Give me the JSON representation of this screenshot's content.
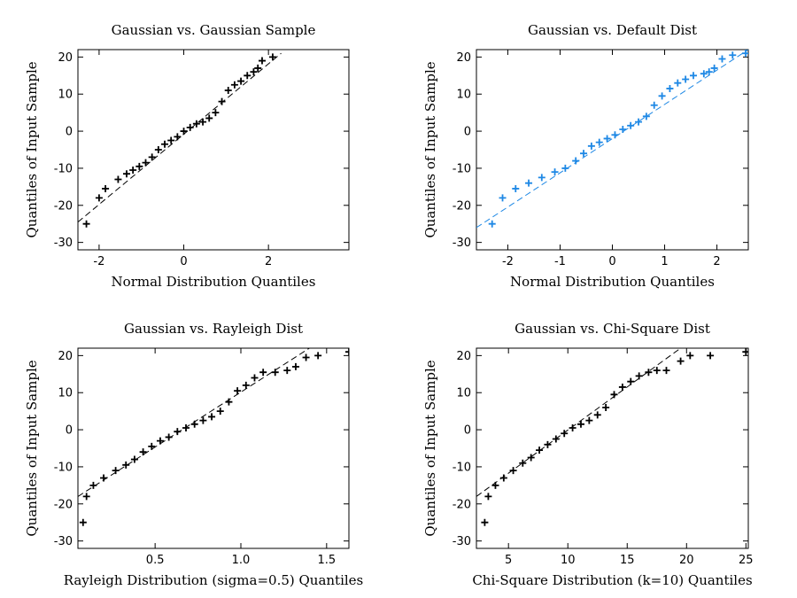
{
  "chart_data": [
    {
      "type": "scatter",
      "title": "Gaussian vs. Gaussian Sample",
      "xlabel": "Normal Distribution Quantiles",
      "ylabel": "Quantiles of Input Sample",
      "xlim": [
        -2.5,
        3.9
      ],
      "ylim": [
        -32,
        22
      ],
      "xticks": [
        -2,
        0,
        2
      ],
      "yticks": [
        -30,
        -20,
        -10,
        0,
        10,
        20
      ],
      "color": "#000000",
      "marker": "+",
      "ref_line": {
        "x": [
          -2.5,
          2.3
        ],
        "y": [
          -24.5,
          21
        ]
      },
      "x": [
        -2.3,
        -2.0,
        -1.85,
        -1.55,
        -1.35,
        -1.2,
        -1.05,
        -0.9,
        -0.75,
        -0.6,
        -0.45,
        -0.3,
        -0.15,
        0.0,
        0.15,
        0.3,
        0.45,
        0.6,
        0.75,
        0.9,
        1.05,
        1.2,
        1.35,
        1.5,
        1.65,
        1.75,
        1.85,
        2.1
      ],
      "y": [
        -25,
        -18,
        -15.5,
        -13,
        -11.5,
        -10.5,
        -9.5,
        -8.5,
        -7,
        -5,
        -3.5,
        -2.5,
        -1.5,
        0,
        1,
        2,
        2.5,
        3.5,
        5,
        8,
        11,
        12.5,
        13.5,
        15,
        16,
        17,
        19,
        20
      ]
    },
    {
      "type": "scatter",
      "title": "Gaussian vs. Default Dist",
      "xlabel": "Normal Distribution Quantiles",
      "ylabel": "Quantiles of Input Sample",
      "xlim": [
        -2.6,
        2.6
      ],
      "ylim": [
        -32,
        22
      ],
      "xticks": [
        -2,
        -1,
        0,
        1,
        2
      ],
      "yticks": [
        -30,
        -20,
        -10,
        0,
        10,
        20
      ],
      "color": "#1e88e5",
      "marker": "+",
      "ref_line": {
        "x": [
          -2.6,
          2.6
        ],
        "y": [
          -26,
          22
        ]
      },
      "x": [
        -2.3,
        -2.1,
        -1.85,
        -1.6,
        -1.35,
        -1.1,
        -0.9,
        -0.7,
        -0.55,
        -0.4,
        -0.25,
        -0.1,
        0.05,
        0.2,
        0.35,
        0.5,
        0.65,
        0.8,
        0.95,
        1.1,
        1.25,
        1.4,
        1.55,
        1.75,
        1.85,
        1.95,
        2.1,
        2.3,
        2.55
      ],
      "y": [
        -25,
        -18,
        -15.5,
        -14,
        -12.5,
        -11,
        -10,
        -8,
        -6,
        -4,
        -3,
        -2,
        -1,
        0.5,
        1.5,
        2.5,
        4,
        7,
        9.5,
        11.5,
        13,
        14,
        15,
        15.5,
        16,
        17,
        19.5,
        20.5,
        21
      ]
    },
    {
      "type": "scatter",
      "title": "Gaussian vs. Rayleigh Dist",
      "xlabel": "Rayleigh Distribution (sigma=0.5) Quantiles",
      "ylabel": "Quantiles of Input Sample",
      "xlim": [
        0.05,
        1.63
      ],
      "ylim": [
        -32,
        22
      ],
      "xticks": [
        0.5,
        1.0,
        1.5
      ],
      "yticks": [
        -30,
        -20,
        -10,
        0,
        10,
        20
      ],
      "color": "#000000",
      "marker": "+",
      "ref_line": {
        "x": [
          0.05,
          1.4
        ],
        "y": [
          -18,
          22
        ]
      },
      "x": [
        0.08,
        0.1,
        0.14,
        0.2,
        0.27,
        0.33,
        0.38,
        0.43,
        0.48,
        0.53,
        0.58,
        0.63,
        0.68,
        0.73,
        0.78,
        0.83,
        0.88,
        0.93,
        0.98,
        1.03,
        1.08,
        1.13,
        1.2,
        1.27,
        1.32,
        1.38,
        1.45,
        1.63
      ],
      "y": [
        -25,
        -18,
        -15,
        -13,
        -11,
        -9.5,
        -8,
        -6,
        -4.5,
        -3,
        -2,
        -0.5,
        0.5,
        1.5,
        2.5,
        3.5,
        5,
        7.5,
        10.5,
        12,
        14,
        15.5,
        15.5,
        16,
        17,
        19.5,
        20,
        21
      ]
    },
    {
      "type": "scatter",
      "title": "Gaussian vs. Chi-Square Dist",
      "xlabel": "Chi-Square Distribution (k=10) Quantiles",
      "ylabel": "Quantiles of Input Sample",
      "xlim": [
        2.3,
        25.2
      ],
      "ylim": [
        -32,
        22
      ],
      "xticks": [
        5,
        10,
        15,
        20,
        25
      ],
      "yticks": [
        -30,
        -20,
        -10,
        0,
        10,
        20
      ],
      "color": "#000000",
      "marker": "+",
      "ref_line": {
        "x": [
          2.3,
          19.5
        ],
        "y": [
          -18,
          22
        ]
      },
      "x": [
        3.0,
        3.3,
        3.9,
        4.6,
        5.4,
        6.2,
        6.9,
        7.6,
        8.3,
        9.0,
        9.7,
        10.4,
        11.1,
        11.8,
        12.5,
        13.2,
        13.9,
        14.6,
        15.3,
        16.0,
        16.8,
        17.5,
        18.3,
        19.5,
        20.3,
        22.0,
        25.0
      ],
      "y": [
        -25,
        -18,
        -15,
        -13,
        -11,
        -9,
        -7.5,
        -5.5,
        -4,
        -2.5,
        -1,
        0.5,
        1.5,
        2.5,
        4,
        6,
        9.5,
        11.5,
        13,
        14.5,
        15.5,
        16,
        16,
        18.5,
        20,
        20,
        21
      ]
    }
  ]
}
